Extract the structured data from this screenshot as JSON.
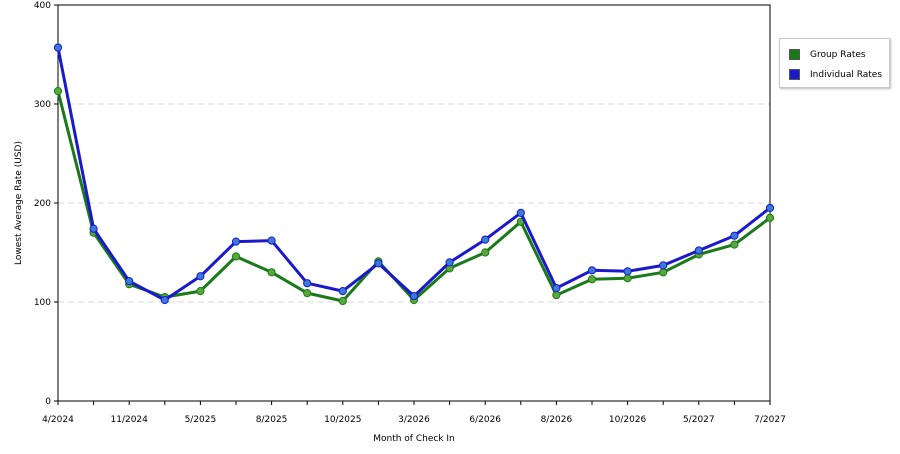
{
  "chart_data": {
    "type": "line",
    "xlabel": "Month of Check In",
    "ylabel": "Lowest Average Rate (USD)",
    "ylim": [
      0,
      400
    ],
    "yticks": [
      0,
      100,
      200,
      300,
      400
    ],
    "grid": true,
    "legend_position": "right",
    "x_tick_labels": [
      "4/2024",
      "11/2024",
      "5/2025",
      "8/2025",
      "10/2025",
      "3/2026",
      "6/2026",
      "8/2026",
      "10/2026",
      "5/2027",
      "7/2027"
    ],
    "x_tick_indices": [
      0,
      2,
      4,
      6,
      8,
      10,
      12,
      14,
      16,
      18,
      20
    ],
    "series": [
      {
        "name": "Group Rates",
        "color": "#1a7a1a",
        "marker_color": "#5aa83a",
        "values": [
          313,
          170,
          118,
          105,
          111,
          146,
          130,
          109,
          101,
          141,
          102,
          134,
          150,
          181,
          107,
          123,
          124,
          130,
          148,
          158,
          185
        ]
      },
      {
        "name": "Individual Rates",
        "color": "#1a1acc",
        "marker_color": "#3a7ad8",
        "values": [
          357,
          174,
          121,
          102,
          126,
          161,
          162,
          119,
          111,
          139,
          106,
          140,
          163,
          190,
          114,
          132,
          131,
          137,
          152,
          167,
          195
        ]
      }
    ]
  }
}
